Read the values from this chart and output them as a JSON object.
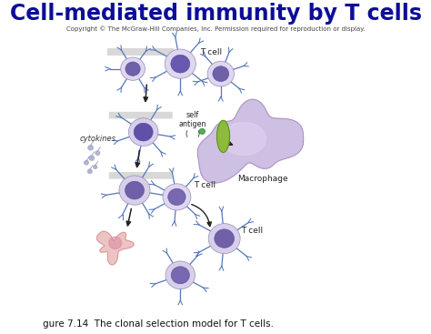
{
  "title": "Cell-mediated immunity by T cells",
  "title_color": "#0d0d99",
  "title_fontsize": 17,
  "title_fontweight": "bold",
  "copyright_text": "Copyright © The McGraw-Hill Companies, Inc. Permission required for reproduction or display.",
  "copyright_fontsize": 5.0,
  "caption_text": "gure 7.14  The clonal selection model for T cells.",
  "caption_fontsize": 7.5,
  "bg_color": "#ffffff",
  "figsize": [
    4.74,
    3.67
  ],
  "dpi": 100
}
